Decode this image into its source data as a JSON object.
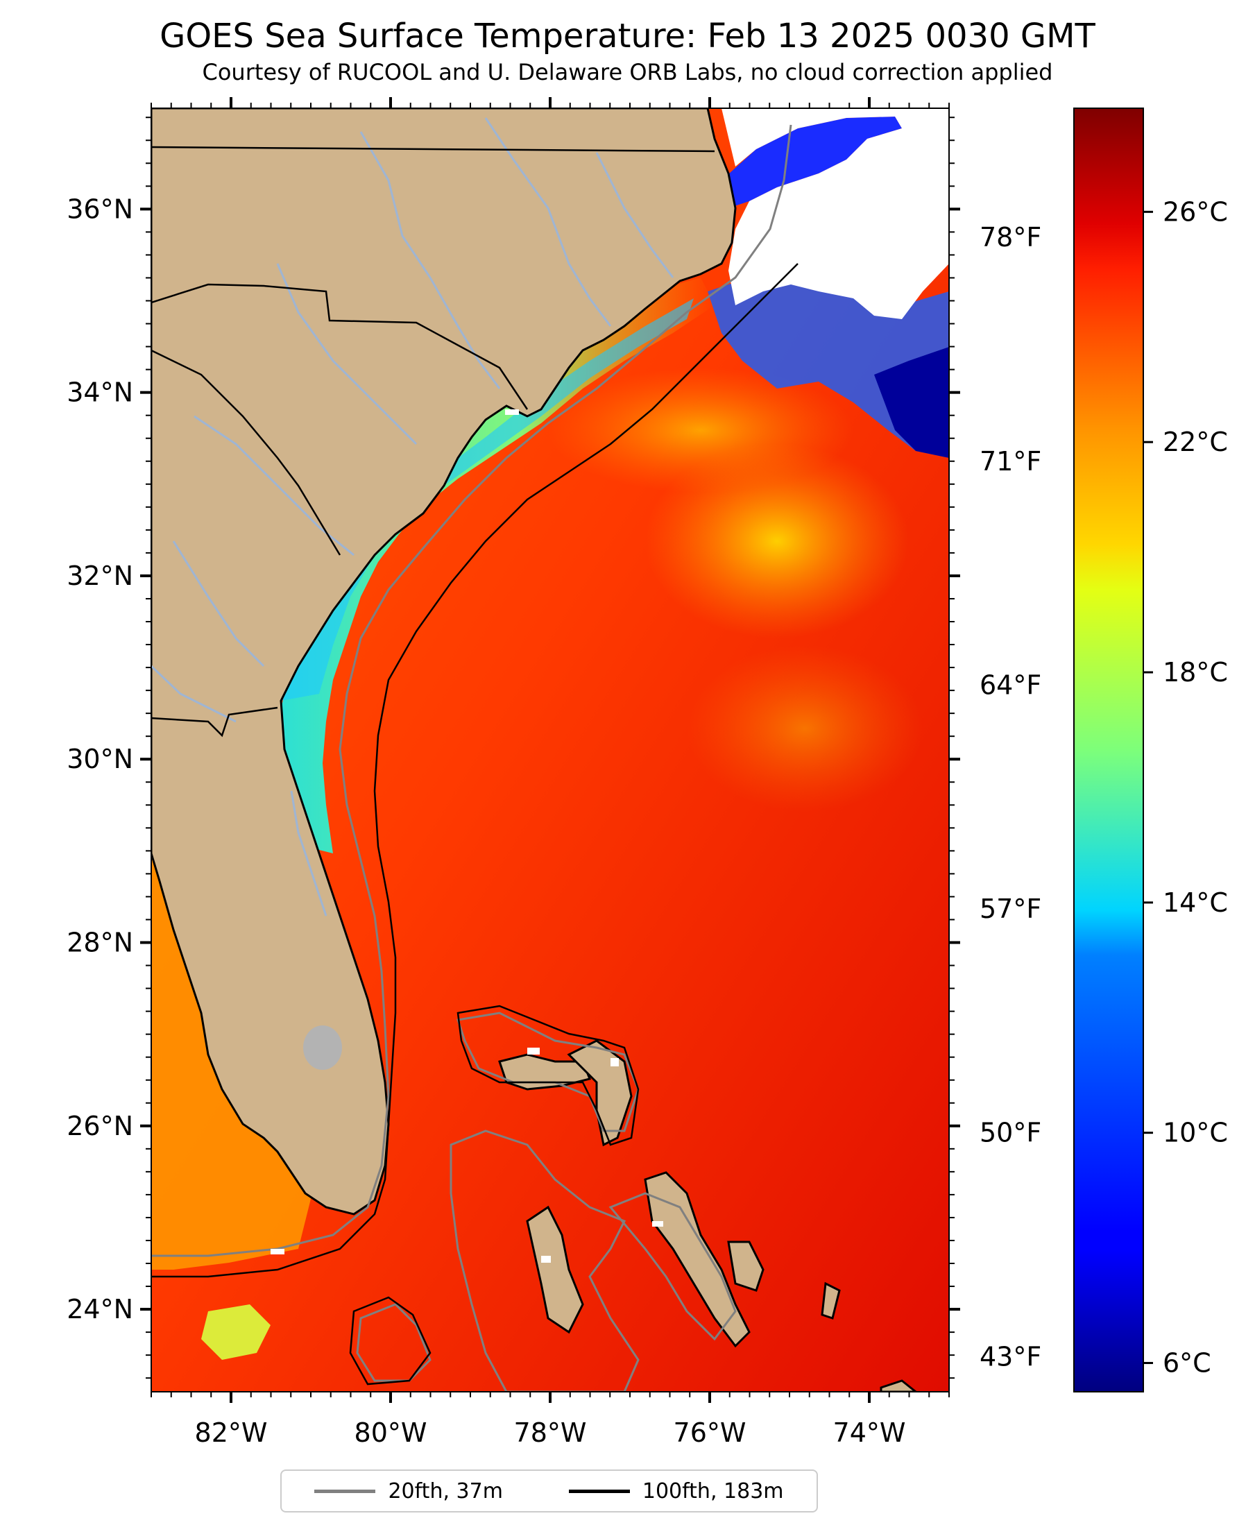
{
  "title": "GOES Sea Surface Temperature: Feb 13 2025 0030 GMT",
  "subtitle": "Courtesy of RUCOOL and U. Delaware ORB Labs, no cloud correction applied",
  "map": {
    "lon_range": [
      -83,
      -73
    ],
    "lat_range": [
      23.1,
      37.1
    ],
    "lat_ticks": [
      {
        "value": 24,
        "label": "24°N"
      },
      {
        "value": 26,
        "label": "26°N"
      },
      {
        "value": 28,
        "label": "28°N"
      },
      {
        "value": 30,
        "label": "30°N"
      },
      {
        "value": 32,
        "label": "32°N"
      },
      {
        "value": 34,
        "label": "34°N"
      },
      {
        "value": 36,
        "label": "36°N"
      }
    ],
    "lon_ticks": [
      {
        "value": -82,
        "label": "82°W"
      },
      {
        "value": -80,
        "label": "80°W"
      },
      {
        "value": -78,
        "label": "78°W"
      },
      {
        "value": -76,
        "label": "76°W"
      },
      {
        "value": -74,
        "label": "74°W"
      }
    ],
    "colors": {
      "land": "#d0b48c",
      "coast": "#000000",
      "rivers": "#9fb5d3",
      "contour_20fth": "#808080",
      "contour_100fth": "#000000",
      "no_data": "#ffffff"
    }
  },
  "colorbar": {
    "colormap": "jet",
    "range_c": [
      5.5,
      27.8
    ],
    "celsius_ticks": [
      {
        "value": 6,
        "label": "6°C"
      },
      {
        "value": 10,
        "label": "10°C"
      },
      {
        "value": 14,
        "label": "14°C"
      },
      {
        "value": 18,
        "label": "18°C"
      },
      {
        "value": 22,
        "label": "22°C"
      },
      {
        "value": 26,
        "label": "26°C"
      }
    ],
    "fahrenheit_ticks": [
      {
        "value": 43,
        "label": "43°F"
      },
      {
        "value": 50,
        "label": "50°F"
      },
      {
        "value": 57,
        "label": "57°F"
      },
      {
        "value": 64,
        "label": "64°F"
      },
      {
        "value": 71,
        "label": "71°F"
      },
      {
        "value": 78,
        "label": "78°F"
      }
    ]
  },
  "legend": {
    "items": [
      {
        "label": "20fth, 37m",
        "color": "#808080"
      },
      {
        "label": "100fth, 183m",
        "color": "#000000"
      }
    ]
  }
}
